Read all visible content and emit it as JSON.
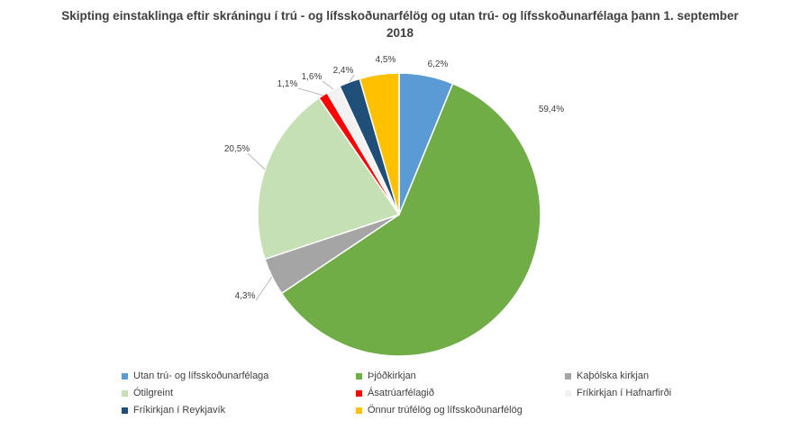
{
  "chart_data": {
    "type": "pie",
    "title": "Skipting einstaklinga eftir skráningu í trú - og lífsskoðunarfélög og utan trú- og lífsskoðunarfélaga þann 1. september 2018",
    "slices": [
      {
        "name": "Utan trú- og lífsskoðunarfélaga",
        "value": 6.2,
        "label": "6,2%",
        "color": "#5B9BD5"
      },
      {
        "name": "Þjóðkirkjan",
        "value": 59.4,
        "label": "59,4%",
        "color": "#70AD47"
      },
      {
        "name": "Kaþólska kirkjan",
        "value": 4.3,
        "label": "4,3%",
        "color": "#A5A5A5"
      },
      {
        "name": "Ótilgreint",
        "value": 20.5,
        "label": "20,5%",
        "color": "#C5E0B4"
      },
      {
        "name": "Ásatrúarfélagið",
        "value": 1.1,
        "label": "1,1%",
        "color": "#FF0000"
      },
      {
        "name": "Fríkirkjan í Hafnarfirði",
        "value": 1.6,
        "label": "1,6%",
        "color": "#F2F2F2"
      },
      {
        "name": "Fríkirkjan í Reykjavík",
        "value": 2.4,
        "label": "2,4%",
        "color": "#1F4E79"
      },
      {
        "name": "Önnur trúfélög og lífsskoðunarfélög",
        "value": 4.5,
        "label": "4,5%",
        "color": "#FFC000"
      }
    ],
    "legend_position": "bottom"
  }
}
